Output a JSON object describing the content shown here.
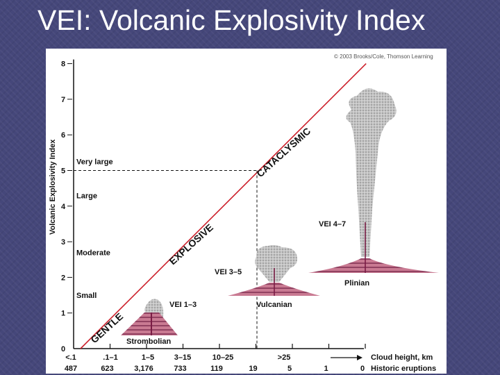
{
  "slide": {
    "title": "VEI: Volcanic Explosivity Index"
  },
  "figure": {
    "copyright": "© 2003 Brooks/Cole, Thomson Learning"
  },
  "chart_data": {
    "type": "line",
    "ylabel": "Volcanic Explosivity Index",
    "ylim": [
      0,
      8
    ],
    "yticks": [
      "0",
      "1",
      "2",
      "3",
      "4",
      "5",
      "6",
      "7",
      "8"
    ],
    "size_labels": [
      {
        "text": "Small",
        "y": 1.5
      },
      {
        "text": "Moderate",
        "y": 2.7
      },
      {
        "text": "Large",
        "y": 4.3
      },
      {
        "text": "Very large",
        "y": 5.25
      }
    ],
    "cloud_height_categories": [
      "<.1",
      ".1–1",
      "1–5",
      "3–15",
      "10–25",
      ">25"
    ],
    "historic_eruptions": [
      "487",
      "623",
      "3,176",
      "733",
      "119",
      "19",
      "5",
      "1",
      "0"
    ],
    "cloud_height_label": "Cloud height, km",
    "historic_label": "Historic eruptions",
    "diagonal_labels": [
      "GENTLE",
      "EXPLOSIVE",
      "CATACLYSMIC"
    ],
    "eruption_types": [
      {
        "name": "Strombolian",
        "vei": "VEI 1–3"
      },
      {
        "name": "Vulcanian",
        "vei": "VEI 3–5"
      },
      {
        "name": "Plinian",
        "vei": "VEI 4–7"
      }
    ],
    "series": [
      {
        "values": [
          0,
          1,
          2,
          3,
          4,
          5,
          6,
          7,
          8
        ]
      }
    ],
    "threshold_vei": 5,
    "colors": {
      "line": "#cc1f2a",
      "ash": "#a3a3a3",
      "magma": "#b62e5e",
      "axis": "#111111"
    },
    "grid": false
  }
}
